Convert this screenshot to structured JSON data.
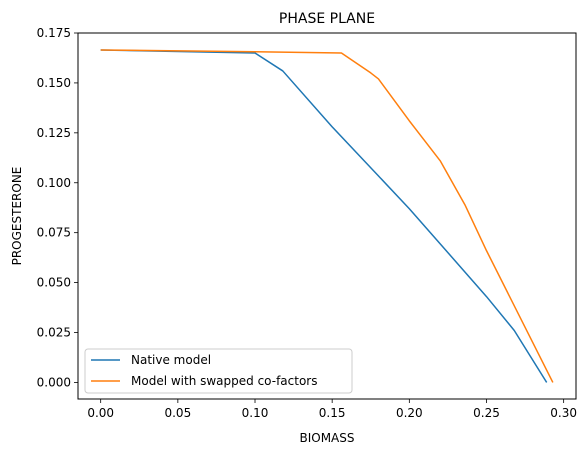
{
  "chart_data": {
    "type": "line",
    "title": "PHASE PLANE",
    "xlabel": "BIOMASS",
    "ylabel": "PROGESTERONE",
    "xlim": [
      -0.0147,
      0.308
    ],
    "ylim": [
      -0.0083,
      0.175
    ],
    "xticks": [
      0.0,
      0.05,
      0.1,
      0.15,
      0.2,
      0.25,
      0.3
    ],
    "xtick_labels": [
      "0.00",
      "0.05",
      "0.10",
      "0.15",
      "0.20",
      "0.25",
      "0.30"
    ],
    "yticks": [
      0.0,
      0.025,
      0.05,
      0.075,
      0.1,
      0.125,
      0.15,
      0.175
    ],
    "ytick_labels": [
      "0.000",
      "0.025",
      "0.050",
      "0.075",
      "0.100",
      "0.125",
      "0.150",
      "0.175"
    ],
    "grid": false,
    "legend_position": "lower-left",
    "series": [
      {
        "name": "Native model",
        "color": "#1f77b4",
        "x": [
          0.0,
          0.1,
          0.118,
          0.15,
          0.2,
          0.25,
          0.268,
          0.289
        ],
        "y": [
          0.1665,
          0.165,
          0.156,
          0.128,
          0.087,
          0.043,
          0.026,
          0.0
        ]
      },
      {
        "name": "Model with swapped co-factors",
        "color": "#ff7f0e",
        "x": [
          0.0,
          0.1,
          0.156,
          0.175,
          0.18,
          0.2,
          0.22,
          0.236,
          0.25,
          0.293
        ],
        "y": [
          0.1665,
          0.1656,
          0.165,
          0.155,
          0.152,
          0.131,
          0.111,
          0.089,
          0.066,
          0.0
        ]
      }
    ]
  }
}
